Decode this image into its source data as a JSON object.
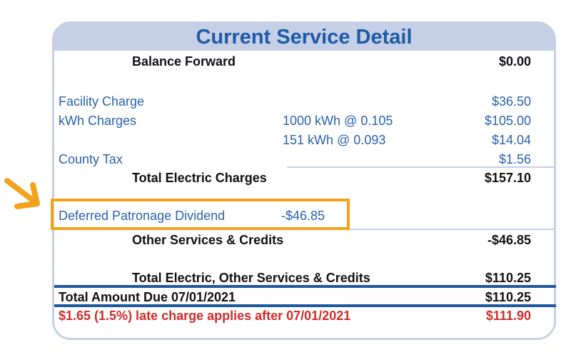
{
  "title": "Current Service Detail",
  "balance_forward": {
    "label": "Balance Forward",
    "amount": "$0.00"
  },
  "facility_charge": {
    "label": "Facility Charge",
    "amount": "$36.50"
  },
  "kwh_charges": {
    "label": "kWh Charges",
    "tiers": [
      {
        "detail": "1000 kWh @ 0.105",
        "amount": "$105.00"
      },
      {
        "detail": "151 kWh @ 0.093",
        "amount": "$14.04"
      }
    ]
  },
  "county_tax": {
    "label": "County Tax",
    "amount": "$1.56"
  },
  "total_electric": {
    "label": "Total Electric Charges",
    "amount": "$157.10"
  },
  "dividend": {
    "label": "Deferred Patronage Dividend",
    "amount": "-$46.85"
  },
  "other_services": {
    "label": "Other Services & Credits",
    "amount": "-$46.85"
  },
  "total_combined": {
    "label": "Total Electric, Other Services & Credits",
    "amount": "$110.25"
  },
  "total_due": {
    "label": "Total Amount Due 07/01/2021",
    "amount": "$110.25"
  },
  "late_charge": {
    "label": "$1.65 (1.5%) late charge applies after 07/01/2021",
    "amount": "$111.90"
  },
  "colors": {
    "header_bg": "#c5cfe6",
    "title": "#1d5aa7",
    "blue_text": "#2a62ad",
    "red_text": "#d22b2b",
    "rule": "#1d58a0",
    "highlight": "#f4a21b"
  }
}
